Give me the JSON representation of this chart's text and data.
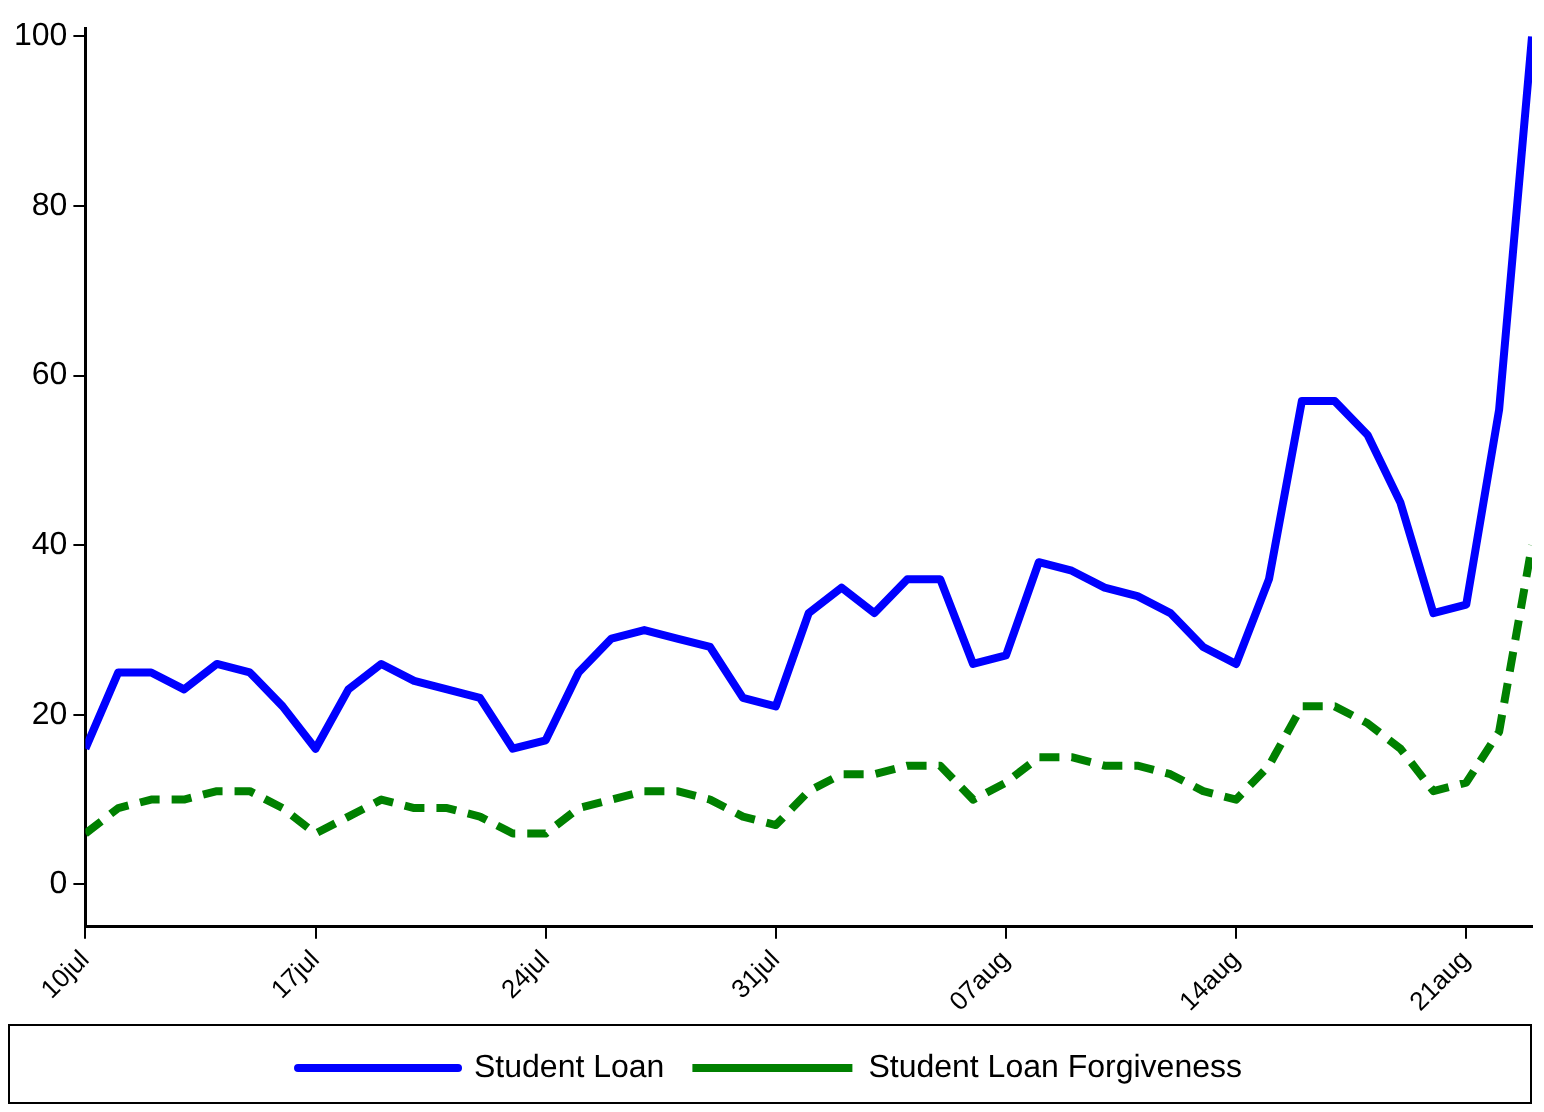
{
  "chart_data": {
    "type": "line",
    "x": [
      "--07-10",
      "--07-11",
      "--07-12",
      "--07-13",
      "--07-14",
      "--07-15",
      "--07-16",
      "--07-17",
      "--07-18",
      "--07-19",
      "--07-20",
      "--07-21",
      "--07-22",
      "--07-23",
      "--07-24",
      "--07-25",
      "--07-26",
      "--07-27",
      "--07-28",
      "--07-29",
      "--07-30",
      "--07-31",
      "--08-01",
      "--08-02",
      "--08-03",
      "--08-04",
      "--08-05",
      "--08-06",
      "--08-07",
      "--08-08",
      "--08-09",
      "--08-10",
      "--08-11",
      "--08-12",
      "--08-13",
      "--08-14",
      "--08-15",
      "--08-16",
      "--08-17",
      "--08-18",
      "--08-19",
      "--08-20",
      "--08-21",
      "--08-22",
      "--08-23"
    ],
    "series": [
      {
        "name": "Student Loan",
        "color": "#0000ff",
        "line_style": "solid",
        "values": [
          16,
          25,
          25,
          23,
          26,
          25,
          21,
          16,
          23,
          26,
          24,
          23,
          22,
          16,
          17,
          25,
          29,
          30,
          29,
          28,
          22,
          21,
          32,
          35,
          32,
          36,
          36,
          26,
          27,
          38,
          37,
          35,
          34,
          32,
          28,
          26,
          36,
          57,
          57,
          53,
          45,
          32,
          33,
          56,
          100
        ]
      },
      {
        "name": "Student Loan Forgiveness",
        "color": "#008000",
        "line_style": "dashed",
        "values": [
          6,
          9,
          10,
          10,
          11,
          11,
          9,
          6,
          8,
          10,
          9,
          9,
          8,
          6,
          6,
          9,
          10,
          11,
          11,
          10,
          8,
          7,
          11,
          13,
          13,
          14,
          14,
          10,
          12,
          15,
          15,
          14,
          14,
          13,
          11,
          10,
          14,
          21,
          21,
          19,
          16,
          11,
          12,
          18,
          40
        ]
      }
    ],
    "xlim": [
      "--07-10",
      "--08-23"
    ],
    "xticks": [
      {
        "value": "--07-10",
        "label": "10jul"
      },
      {
        "value": "--07-17",
        "label": "17jul"
      },
      {
        "value": "--07-24",
        "label": "24jul"
      },
      {
        "value": "--07-31",
        "label": "31jul"
      },
      {
        "value": "--08-07",
        "label": "07aug"
      },
      {
        "value": "--08-14",
        "label": "14aug"
      },
      {
        "value": "--08-21",
        "label": "21aug"
      }
    ],
    "ylim": [
      -5,
      101
    ],
    "yticks": [
      0,
      20,
      40,
      60,
      80,
      100
    ],
    "grid": false,
    "legend": "bottom",
    "marker": "none"
  }
}
